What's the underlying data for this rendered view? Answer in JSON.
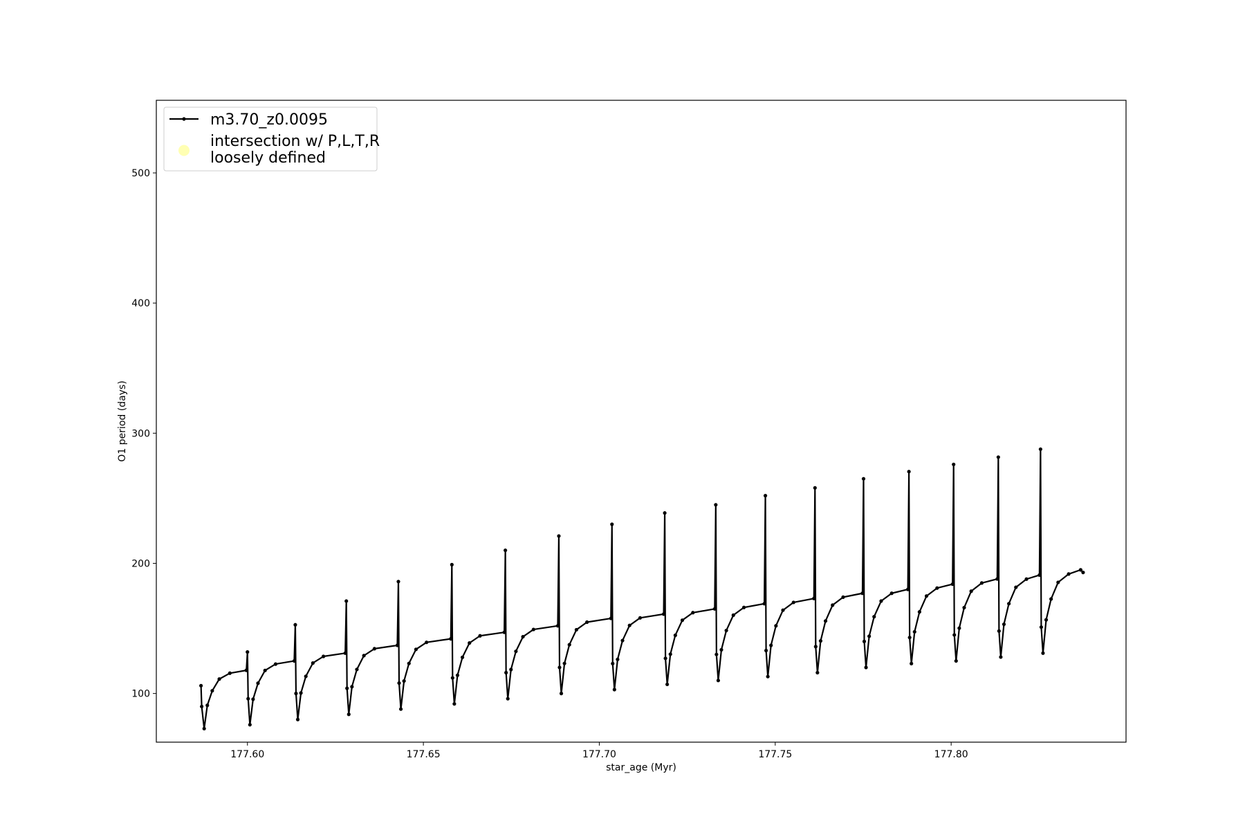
{
  "chart_data": {
    "type": "line",
    "xlabel": "star_age (Myr)",
    "ylabel": "O1 period (days)",
    "xlim": [
      177.5741,
      177.8497
    ],
    "ylim": [
      62.6,
      555.8
    ],
    "xticks": [
      {
        "value": 177.6,
        "label": "177.60"
      },
      {
        "value": 177.65,
        "label": "177.65"
      },
      {
        "value": 177.7,
        "label": "177.70"
      },
      {
        "value": 177.75,
        "label": "177.75"
      },
      {
        "value": 177.8,
        "label": "177.80"
      }
    ],
    "yticks": [
      100,
      200,
      300,
      400,
      500
    ],
    "grid": false,
    "legend": "upper left",
    "series": [
      {
        "name": "m3.70_z0.0095",
        "color": "#000000",
        "marker": "o",
        "x": [
          177.5868,
          177.587,
          177.5877,
          177.5886,
          177.59,
          177.592,
          177.595,
          177.5997,
          177.6,
          177.6002,
          177.6007,
          177.6016,
          177.603,
          177.605,
          177.608,
          177.6133,
          177.6136,
          177.6138,
          177.6143,
          177.6152,
          177.6166,
          177.6186,
          177.6216,
          177.6278,
          177.6281,
          177.6283,
          177.6288,
          177.6297,
          177.6311,
          177.6331,
          177.6361,
          177.6426,
          177.6429,
          177.6431,
          177.6436,
          177.6445,
          177.6459,
          177.6479,
          177.6509,
          177.6578,
          177.6581,
          177.6583,
          177.6588,
          177.6597,
          177.6611,
          177.6631,
          177.6661,
          177.673,
          177.6733,
          177.6735,
          177.674,
          177.6749,
          177.6763,
          177.6783,
          177.6813,
          177.6882,
          177.6885,
          177.6887,
          177.6892,
          177.6901,
          177.6915,
          177.6935,
          177.6965,
          177.7033,
          177.7036,
          177.7038,
          177.7043,
          177.7052,
          177.7066,
          177.7086,
          177.7116,
          177.7183,
          177.7186,
          177.7188,
          177.7193,
          177.7202,
          177.7216,
          177.7236,
          177.7266,
          177.7328,
          177.7331,
          177.7333,
          177.7338,
          177.7347,
          177.7361,
          177.7381,
          177.7411,
          177.7469,
          177.7472,
          177.7474,
          177.7479,
          177.7488,
          177.7502,
          177.7522,
          177.7552,
          177.761,
          177.7613,
          177.7615,
          177.762,
          177.7629,
          177.7643,
          177.7663,
          177.7693,
          177.7748,
          177.7751,
          177.7753,
          177.7758,
          177.7767,
          177.7781,
          177.7801,
          177.7831,
          177.7877,
          177.788,
          177.7882,
          177.7887,
          177.7896,
          177.791,
          177.793,
          177.796,
          177.8004,
          177.8007,
          177.8009,
          177.8014,
          177.8023,
          177.8037,
          177.8057,
          177.8087,
          177.8131,
          177.8134,
          177.8136,
          177.8141,
          177.815,
          177.8164,
          177.8184,
          177.8214,
          177.8251,
          177.8254,
          177.8256,
          177.8261,
          177.827,
          177.8284,
          177.8304,
          177.8334,
          177.8368,
          177.8375
        ],
        "values": [
          106,
          90,
          73,
          90.9,
          102.1,
          111.1,
          115.6,
          117.8,
          131.9,
          96,
          76,
          95.6,
          107.9,
          117.7,
          122.6,
          125,
          152.8,
          100,
          80,
          100.4,
          113.2,
          123.4,
          128.5,
          131,
          171,
          104,
          84,
          105.2,
          118.5,
          129.1,
          134.4,
          137,
          186,
          108,
          88,
          109.6,
          123.1,
          133.9,
          139.3,
          142,
          199,
          112,
          92,
          114,
          127.8,
          138.8,
          144.3,
          147,
          210,
          116,
          96,
          118.4,
          132.4,
          143.6,
          149.2,
          152,
          221,
          120,
          100,
          123.1,
          137.5,
          149,
          154.8,
          157.7,
          230,
          123,
          103,
          126.2,
          140.7,
          152.3,
          158.1,
          161,
          238.7,
          127,
          107,
          130.2,
          144.7,
          156.3,
          162.1,
          165,
          245,
          130,
          110,
          133.6,
          148.4,
          160.2,
          166.1,
          169,
          252,
          133,
          113,
          137,
          152,
          164,
          170,
          173,
          258,
          136,
          116,
          140.4,
          155.7,
          167.9,
          174,
          177,
          265,
          140,
          120,
          144,
          159,
          171,
          177,
          180,
          270.5,
          143,
          123,
          147.4,
          162.7,
          174.9,
          181,
          184,
          276,
          145,
          125,
          150.2,
          166,
          178.6,
          184.9,
          188,
          281.6,
          148,
          128,
          153.2,
          169,
          181.6,
          187.9,
          191,
          287.7,
          151,
          131,
          156.6,
          172.6,
          185.4,
          191.8,
          195,
          193
        ]
      },
      {
        "name": "intersection w/ P,L,T,R\nloosely defined",
        "color": "#ffffb3",
        "marker": "o",
        "x": [],
        "values": []
      }
    ]
  }
}
